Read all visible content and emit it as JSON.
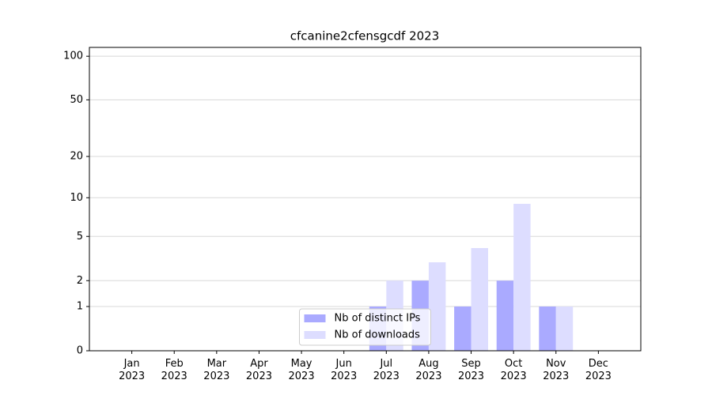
{
  "chart_data": {
    "type": "bar",
    "title": "cfcanine2cfensgcdf 2023",
    "categories": [
      "Jan 2023",
      "Feb 2023",
      "Mar 2023",
      "Apr 2023",
      "May 2023",
      "Jun 2023",
      "Jul 2023",
      "Aug 2023",
      "Sep 2023",
      "Oct 2023",
      "Nov 2023",
      "Dec 2023"
    ],
    "series": [
      {
        "name": "Nb of distinct IPs",
        "color": "#aaaaff",
        "values": [
          0,
          0,
          0,
          0,
          0,
          0,
          1,
          2,
          1,
          2,
          1,
          0
        ]
      },
      {
        "name": "Nb of downloads",
        "color": "#ddddff",
        "values": [
          0,
          0,
          0,
          0,
          0,
          0,
          2,
          3,
          4,
          9,
          1,
          0
        ]
      }
    ],
    "yscale": "log1p",
    "ylim": [
      0,
      115
    ],
    "yticks": [
      0,
      1,
      2,
      5,
      10,
      20,
      50,
      100
    ],
    "grid": true,
    "legend": "lower center"
  }
}
